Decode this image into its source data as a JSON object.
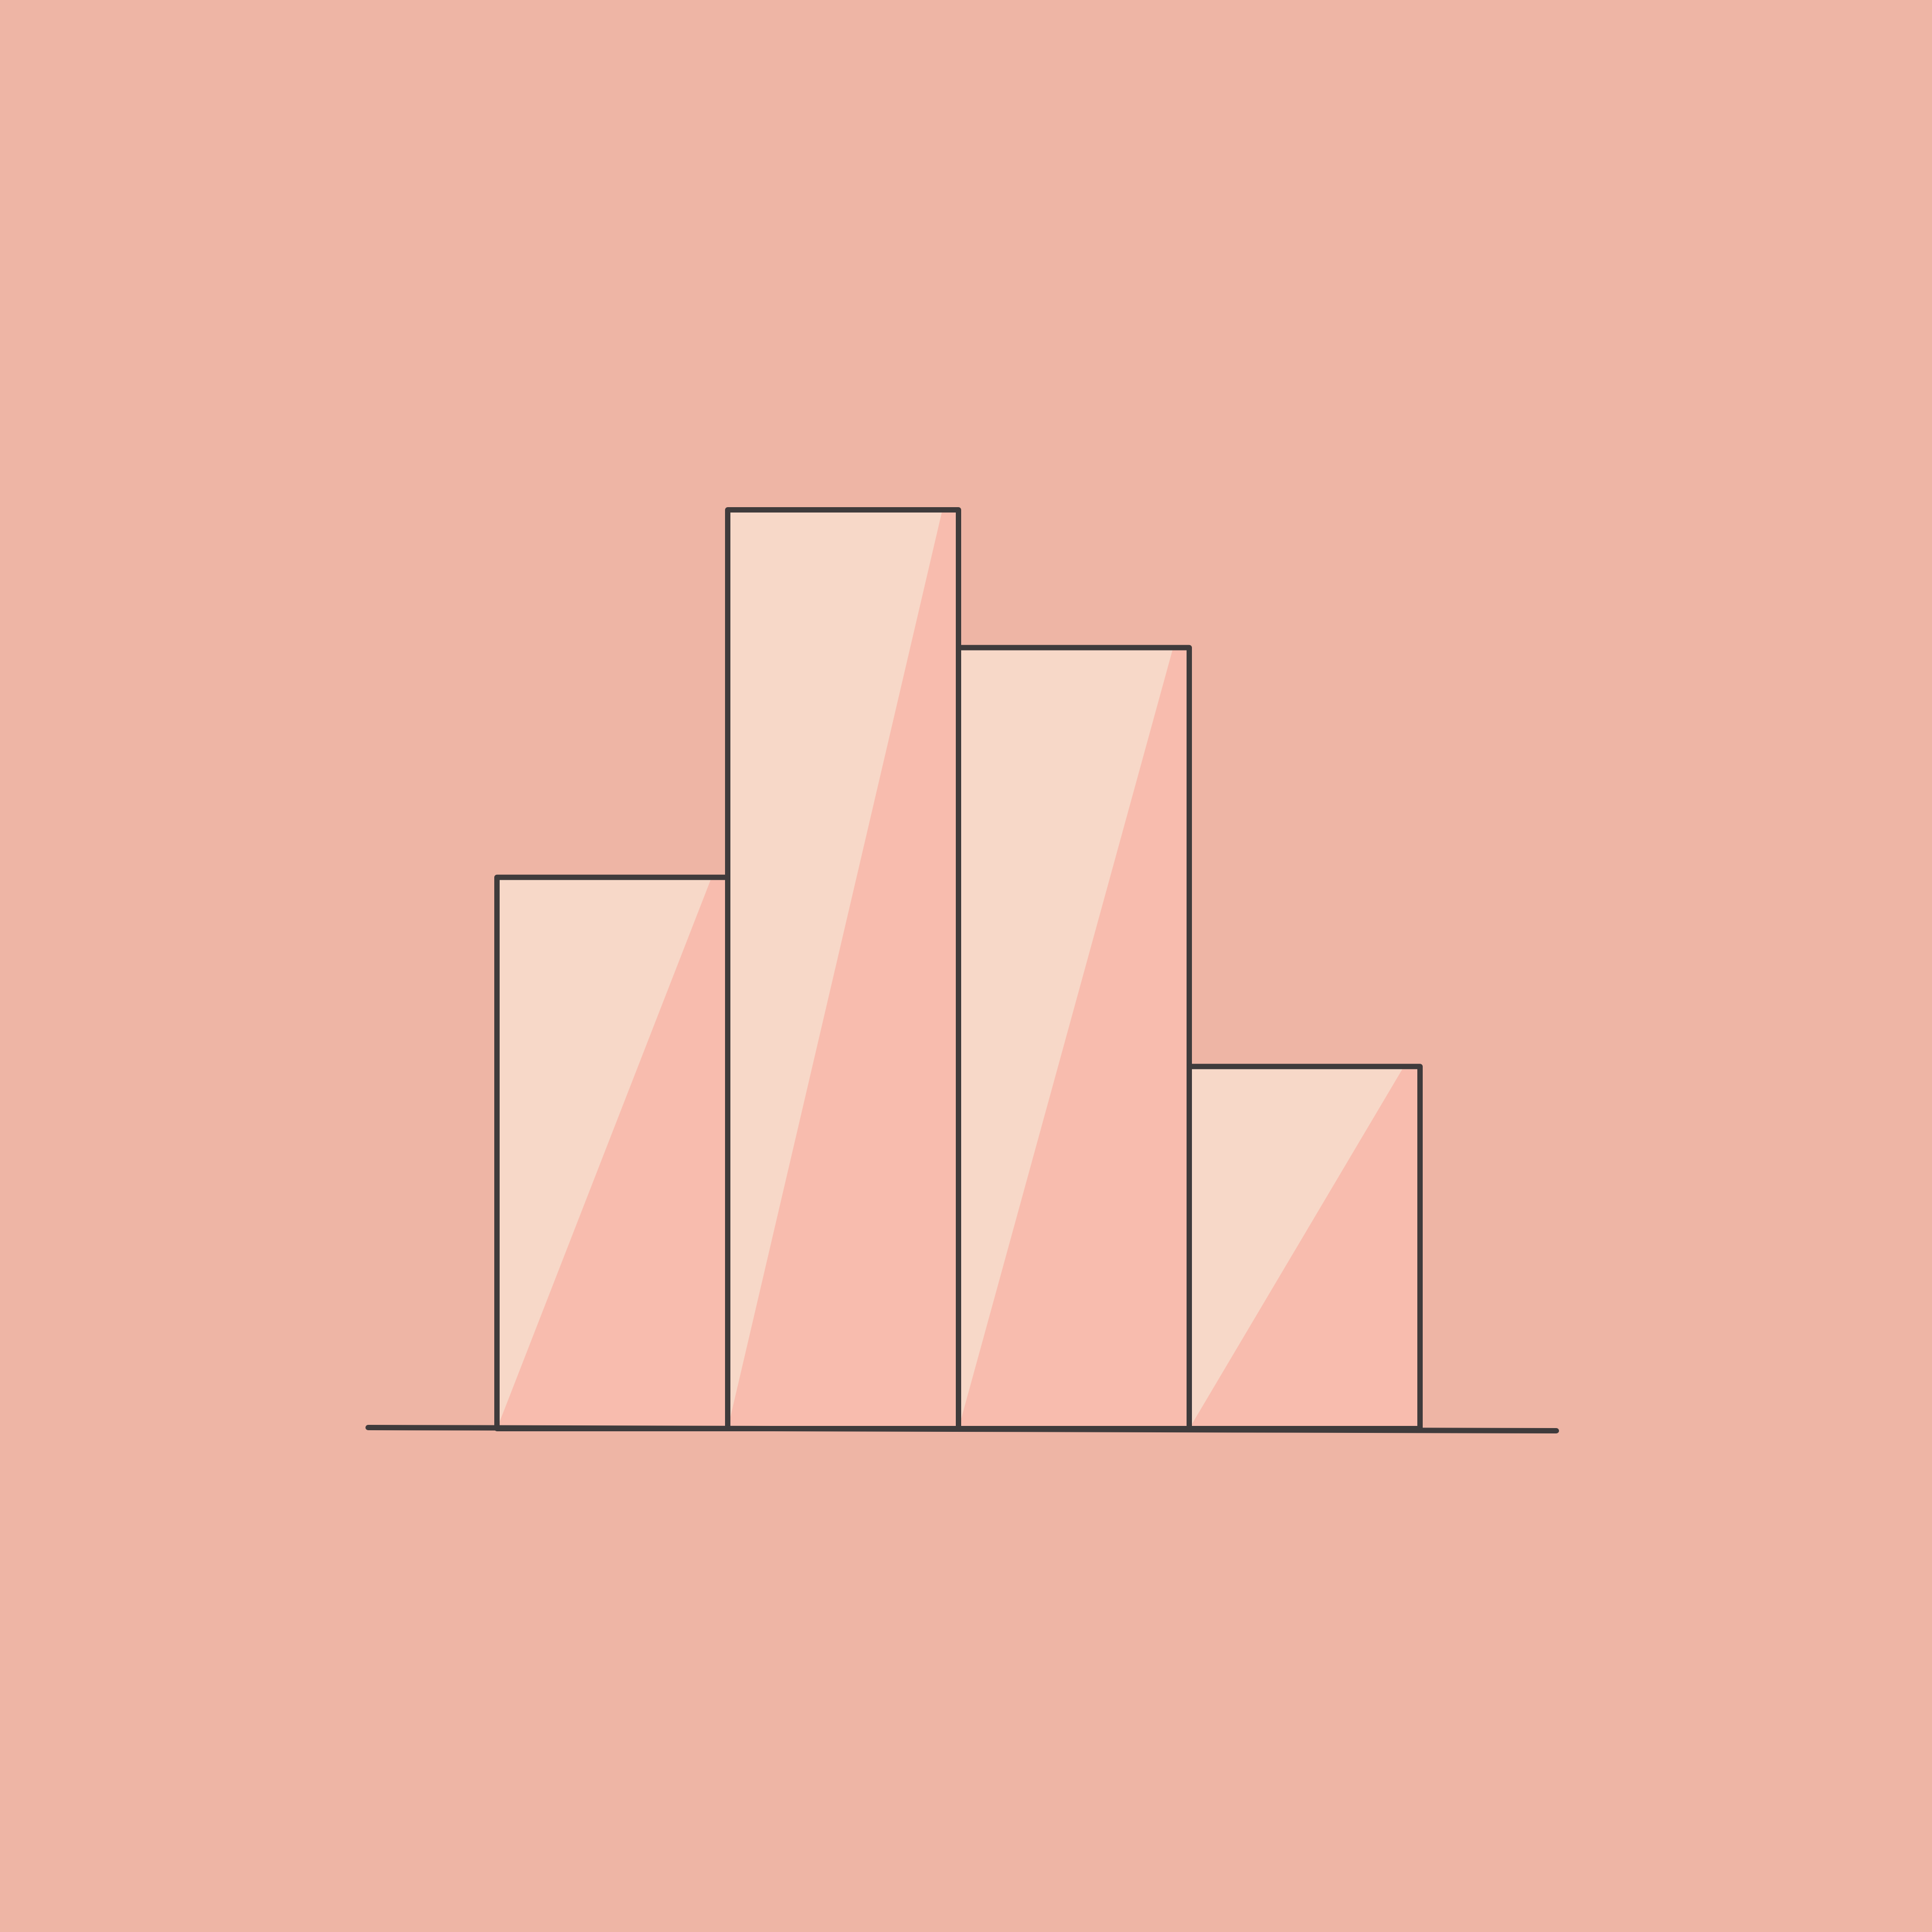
{
  "illustration": {
    "subject": "bar-chart-icon",
    "style": "hand-drawn",
    "colors": {
      "background": "#EEB5A5",
      "bar_dark": "#F8BCAE",
      "bar_light": "#F7D8C8",
      "outline": "#3F3B3C"
    }
  },
  "chart_data": {
    "type": "bar",
    "categories": [
      "",
      "",
      "",
      ""
    ],
    "values": [
      1020,
      1700,
      1445,
      670
    ],
    "ylim": [
      0,
      1700
    ],
    "title": "",
    "xlabel": "",
    "ylabel": "",
    "grid": false,
    "legend": false
  }
}
